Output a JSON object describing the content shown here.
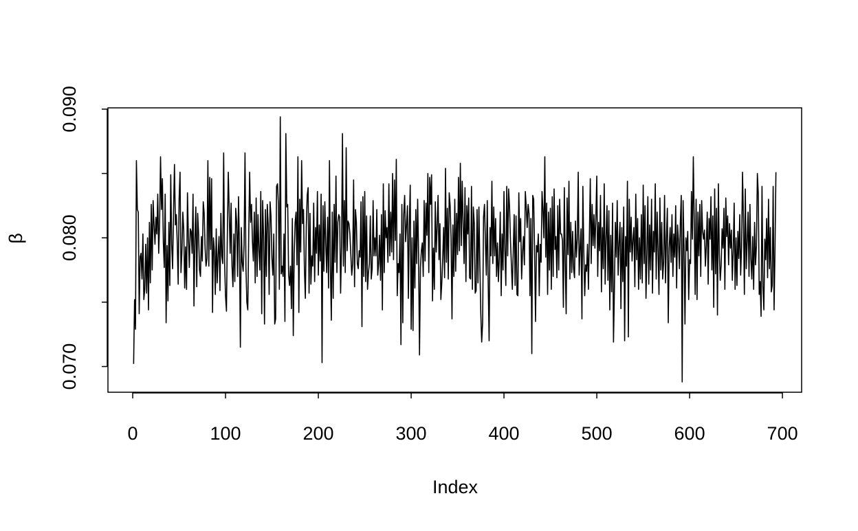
{
  "chart_data": {
    "type": "line",
    "x_label": "Index",
    "y_label": "β",
    "color": "#000000",
    "xlim": [
      -26.68,
      720.68
    ],
    "ylim": [
      0.068,
      0.0901
    ],
    "xticks": [
      0,
      100,
      200,
      300,
      400,
      500,
      600,
      700
    ],
    "yticks": [
      {
        "value": 0.07,
        "label": "0.070"
      },
      {
        "value": 0.075
      },
      {
        "value": 0.08,
        "label": "0.080"
      },
      {
        "value": 0.085
      },
      {
        "value": 0.09,
        "label": "0.090"
      }
    ],
    "values": [
      0.0702,
      0.0752,
      0.0729,
      0.086,
      0.0822,
      0.082,
      0.0741,
      0.0785,
      0.0788,
      0.0768,
      0.0803,
      0.0752,
      0.076,
      0.0795,
      0.0757,
      0.08,
      0.0744,
      0.0812,
      0.0765,
      0.0826,
      0.0775,
      0.0829,
      0.081,
      0.0795,
      0.0816,
      0.0803,
      0.0834,
      0.0788,
      0.0812,
      0.0863,
      0.0822,
      0.0846,
      0.0797,
      0.0777,
      0.0834,
      0.0734,
      0.0794,
      0.0751,
      0.0812,
      0.0763,
      0.0849,
      0.0795,
      0.0776,
      0.0821,
      0.0857,
      0.081,
      0.0818,
      0.0796,
      0.0764,
      0.083,
      0.0851,
      0.0773,
      0.0788,
      0.082,
      0.0806,
      0.0761,
      0.0793,
      0.076,
      0.0835,
      0.08,
      0.0777,
      0.0807,
      0.0805,
      0.0788,
      0.0834,
      0.0747,
      0.0799,
      0.0824,
      0.0762,
      0.0819,
      0.0803,
      0.0775,
      0.077,
      0.0801,
      0.0782,
      0.0828,
      0.0819,
      0.0792,
      0.0778,
      0.0784,
      0.086,
      0.0778,
      0.0847,
      0.0791,
      0.0846,
      0.0742,
      0.08,
      0.079,
      0.0756,
      0.0807,
      0.0765,
      0.0787,
      0.0801,
      0.0759,
      0.0819,
      0.0786,
      0.078,
      0.0866,
      0.0781,
      0.0755,
      0.0743,
      0.0805,
      0.0851,
      0.082,
      0.0788,
      0.0827,
      0.0778,
      0.0762,
      0.0803,
      0.0766,
      0.0823,
      0.0812,
      0.077,
      0.0832,
      0.0793,
      0.0715,
      0.0808,
      0.0781,
      0.0774,
      0.0795,
      0.0866,
      0.0777,
      0.075,
      0.0744,
      0.0802,
      0.0851,
      0.0812,
      0.0826,
      0.0797,
      0.0782,
      0.082,
      0.0765,
      0.0831,
      0.077,
      0.0818,
      0.079,
      0.0775,
      0.0836,
      0.0741,
      0.0829,
      0.0801,
      0.0733,
      0.0822,
      0.077,
      0.0826,
      0.081,
      0.0756,
      0.0828,
      0.0817,
      0.0784,
      0.0771,
      0.0803,
      0.0733,
      0.0737,
      0.084,
      0.0842,
      0.0826,
      0.076,
      0.0894,
      0.0772,
      0.0778,
      0.077,
      0.0803,
      0.0735,
      0.0881,
      0.0824,
      0.0826,
      0.0771,
      0.0763,
      0.0778,
      0.0745,
      0.0815,
      0.0724,
      0.0788,
      0.0812,
      0.082,
      0.0779,
      0.0863,
      0.0742,
      0.083,
      0.0789,
      0.086,
      0.0811,
      0.0822,
      0.0776,
      0.0753,
      0.0808,
      0.0833,
      0.0839,
      0.0757,
      0.0819,
      0.0764,
      0.0786,
      0.0778,
      0.0827,
      0.0766,
      0.0808,
      0.0788,
      0.0836,
      0.0771,
      0.081,
      0.0782,
      0.0834,
      0.0703,
      0.0825,
      0.0774,
      0.0828,
      0.0795,
      0.0773,
      0.0816,
      0.0761,
      0.086,
      0.0777,
      0.0736,
      0.082,
      0.0753,
      0.0826,
      0.0781,
      0.0848,
      0.0773,
      0.0812,
      0.0818,
      0.0816,
      0.0757,
      0.0793,
      0.0881,
      0.0778,
      0.0829,
      0.0773,
      0.087,
      0.079,
      0.0813,
      0.0811,
      0.0803,
      0.0787,
      0.0771,
      0.078,
      0.0845,
      0.0762,
      0.0822,
      0.0812,
      0.078,
      0.0776,
      0.079,
      0.0785,
      0.0828,
      0.0731,
      0.0832,
      0.077,
      0.0836,
      0.0766,
      0.0817,
      0.076,
      0.0773,
      0.078,
      0.0817,
      0.0768,
      0.0776,
      0.0829,
      0.0786,
      0.08,
      0.0786,
      0.0822,
      0.0771,
      0.078,
      0.0802,
      0.0767,
      0.0818,
      0.0744,
      0.0842,
      0.0773,
      0.0821,
      0.08,
      0.0808,
      0.0781,
      0.0842,
      0.0786,
      0.082,
      0.0789,
      0.085,
      0.0783,
      0.0845,
      0.0798,
      0.0861,
      0.0755,
      0.078,
      0.0773,
      0.0803,
      0.0717,
      0.0826,
      0.0734,
      0.0818,
      0.0833,
      0.0797,
      0.081,
      0.0825,
      0.0753,
      0.081,
      0.0841,
      0.0729,
      0.08,
      0.0728,
      0.0813,
      0.0761,
      0.0822,
      0.078,
      0.083,
      0.0787,
      0.0709,
      0.0777,
      0.079,
      0.0796,
      0.077,
      0.0829,
      0.0782,
      0.0827,
      0.0802,
      0.085,
      0.0773,
      0.0847,
      0.0826,
      0.0849,
      0.0751,
      0.0792,
      0.076,
      0.0828,
      0.0789,
      0.0809,
      0.0833,
      0.0783,
      0.0811,
      0.0752,
      0.0765,
      0.0784,
      0.0808,
      0.0769,
      0.0854,
      0.0781,
      0.0823,
      0.0768,
      0.0835,
      0.0825,
      0.08,
      0.0737,
      0.081,
      0.077,
      0.083,
      0.0774,
      0.0819,
      0.0787,
      0.0847,
      0.079,
      0.0858,
      0.0794,
      0.0844,
      0.0812,
      0.078,
      0.0839,
      0.0766,
      0.0825,
      0.0803,
      0.0831,
      0.0769,
      0.0768,
      0.084,
      0.076,
      0.0824,
      0.0811,
      0.0757,
      0.0759,
      0.0822,
      0.0765,
      0.0824,
      0.078,
      0.0742,
      0.0719,
      0.0734,
      0.0816,
      0.0826,
      0.0797,
      0.0771,
      0.0829,
      0.0765,
      0.072,
      0.0808,
      0.0786,
      0.0844,
      0.078,
      0.0824,
      0.0786,
      0.0815,
      0.077,
      0.0796,
      0.0766,
      0.0785,
      0.082,
      0.0755,
      0.0803,
      0.0775,
      0.0836,
      0.079,
      0.0763,
      0.084,
      0.0786,
      0.0838,
      0.0824,
      0.0798,
      0.0779,
      0.076,
      0.079,
      0.0818,
      0.0763,
      0.0817,
      0.0756,
      0.0755,
      0.0835,
      0.0797,
      0.0815,
      0.0768,
      0.0789,
      0.0801,
      0.0779,
      0.0836,
      0.0824,
      0.0808,
      0.0826,
      0.0819,
      0.0755,
      0.0815,
      0.071,
      0.0833,
      0.083,
      0.0788,
      0.0735,
      0.0794,
      0.0789,
      0.0803,
      0.0755,
      0.0795,
      0.0781,
      0.0836,
      0.0822,
      0.08,
      0.0863,
      0.0785,
      0.0827,
      0.0756,
      0.082,
      0.0775,
      0.0823,
      0.076,
      0.0832,
      0.077,
      0.0838,
      0.0791,
      0.0801,
      0.0769,
      0.0825,
      0.0775,
      0.083,
      0.0803,
      0.0803,
      0.0798,
      0.0746,
      0.0839,
      0.0781,
      0.0741,
      0.0831,
      0.0787,
      0.0844,
      0.0768,
      0.0812,
      0.0773,
      0.0805,
      0.0776,
      0.0769,
      0.0813,
      0.0785,
      0.0799,
      0.0851,
      0.0771,
      0.0792,
      0.0807,
      0.0737,
      0.084,
      0.079,
      0.0755,
      0.0779,
      0.0774,
      0.0795,
      0.076,
      0.0801,
      0.0846,
      0.078,
      0.0826,
      0.0794,
      0.0818,
      0.0792,
      0.0816,
      0.0848,
      0.077,
      0.0812,
      0.079,
      0.0833,
      0.0758,
      0.0808,
      0.0776,
      0.0842,
      0.0764,
      0.08,
      0.0825,
      0.0767,
      0.0821,
      0.0744,
      0.0802,
      0.0758,
      0.0827,
      0.0719,
      0.076,
      0.0812,
      0.0785,
      0.0829,
      0.0771,
      0.0796,
      0.0812,
      0.0745,
      0.0808,
      0.0766,
      0.0824,
      0.072,
      0.0801,
      0.0778,
      0.0844,
      0.0723,
      0.083,
      0.0789,
      0.0816,
      0.0782,
      0.0799,
      0.0808,
      0.0762,
      0.0834,
      0.0783,
      0.0815,
      0.076,
      0.08,
      0.0768,
      0.0818,
      0.0765,
      0.0841,
      0.078,
      0.0825,
      0.0753,
      0.0788,
      0.0832,
      0.0764,
      0.081,
      0.0775,
      0.083,
      0.0757,
      0.0805,
      0.0789,
      0.0842,
      0.0768,
      0.082,
      0.079,
      0.0756,
      0.0831,
      0.0775,
      0.0812,
      0.0768,
      0.0781,
      0.0833,
      0.0765,
      0.08,
      0.0823,
      0.0734,
      0.0792,
      0.0808,
      0.0781,
      0.0818,
      0.077,
      0.0803,
      0.0785,
      0.0825,
      0.0761,
      0.081,
      0.0798,
      0.0776,
      0.0812,
      0.0833,
      0.0688,
      0.0829,
      0.0792,
      0.0733,
      0.08,
      0.079,
      0.0805,
      0.0752,
      0.0783,
      0.078,
      0.0836,
      0.0799,
      0.0863,
      0.0812,
      0.0756,
      0.083,
      0.0752,
      0.082,
      0.0786,
      0.0826,
      0.077,
      0.0829,
      0.0805,
      0.0799,
      0.0806,
      0.0778,
      0.0794,
      0.082,
      0.0764,
      0.0815,
      0.0799,
      0.0832,
      0.0775,
      0.0817,
      0.0746,
      0.0838,
      0.0772,
      0.0823,
      0.074,
      0.0842,
      0.0788,
      0.0767,
      0.0779,
      0.0807,
      0.0792,
      0.0823,
      0.076,
      0.0831,
      0.0801,
      0.0817,
      0.0779,
      0.0811,
      0.0792,
      0.0806,
      0.0767,
      0.079,
      0.0827,
      0.076,
      0.08,
      0.0763,
      0.0805,
      0.0784,
      0.0818,
      0.0771,
      0.0793,
      0.0851,
      0.0815,
      0.0756,
      0.0838,
      0.0776,
      0.0797,
      0.082,
      0.077,
      0.0826,
      0.0784,
      0.0768,
      0.0801,
      0.076,
      0.0812,
      0.0779,
      0.0794,
      0.085,
      0.0834,
      0.0756,
      0.0766,
      0.0739,
      0.084,
      0.0762,
      0.0744,
      0.0799,
      0.0783,
      0.0815,
      0.0769,
      0.083,
      0.0776,
      0.0808,
      0.0758,
      0.0763,
      0.084,
      0.0744,
      0.0791,
      0.0851
    ]
  }
}
